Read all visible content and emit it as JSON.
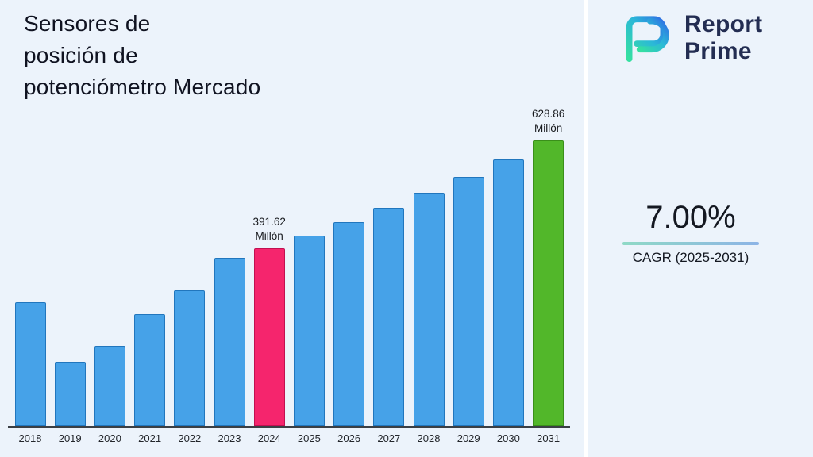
{
  "page_title": "Sensores de\nposición de\npotenciómetro Mercado",
  "logo": {
    "line1": "Report",
    "line2": "Prime"
  },
  "chart_data": {
    "type": "bar",
    "title": "Sensores de posición de potenciómetro Mercado",
    "categories": [
      "2018",
      "2019",
      "2020",
      "2021",
      "2022",
      "2023",
      "2024",
      "2025",
      "2026",
      "2027",
      "2028",
      "2029",
      "2030",
      "2031"
    ],
    "values": [
      273,
      142,
      176,
      246,
      298,
      370,
      391.62,
      419.04,
      448.37,
      479.76,
      513.34,
      549.27,
      587.72,
      628.86
    ],
    "unit": "Millón",
    "ylim": [
      0,
      628.86
    ],
    "grid": false,
    "legend": "none",
    "bar_color_default": "#46a2e8",
    "bar_border_default": "#2176bd",
    "highlights": [
      {
        "index": 6,
        "color": "#f5256d",
        "border": "#c11051",
        "label": "391.62\nMillón"
      },
      {
        "index": 13,
        "color": "#52b72a",
        "border": "#3a8f1a",
        "label": "628.86\nMillón"
      }
    ],
    "cagr": "7.00%",
    "cagr_label": "CAGR (2025-2031)"
  }
}
